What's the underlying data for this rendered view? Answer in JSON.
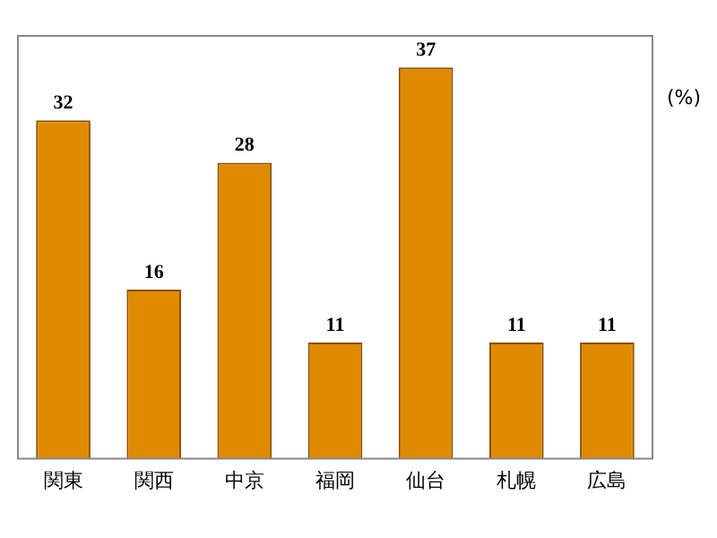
{
  "chart_data": {
    "type": "bar",
    "ylabel": "(%)",
    "categories": [
      "関東",
      "関西",
      "中京",
      "福岡",
      "仙台",
      "札幌",
      "広島"
    ],
    "values": [
      32,
      16,
      28,
      11,
      37,
      11,
      11
    ],
    "color": "#e08a00",
    "data_labels": true,
    "grid": false,
    "legend": false
  }
}
